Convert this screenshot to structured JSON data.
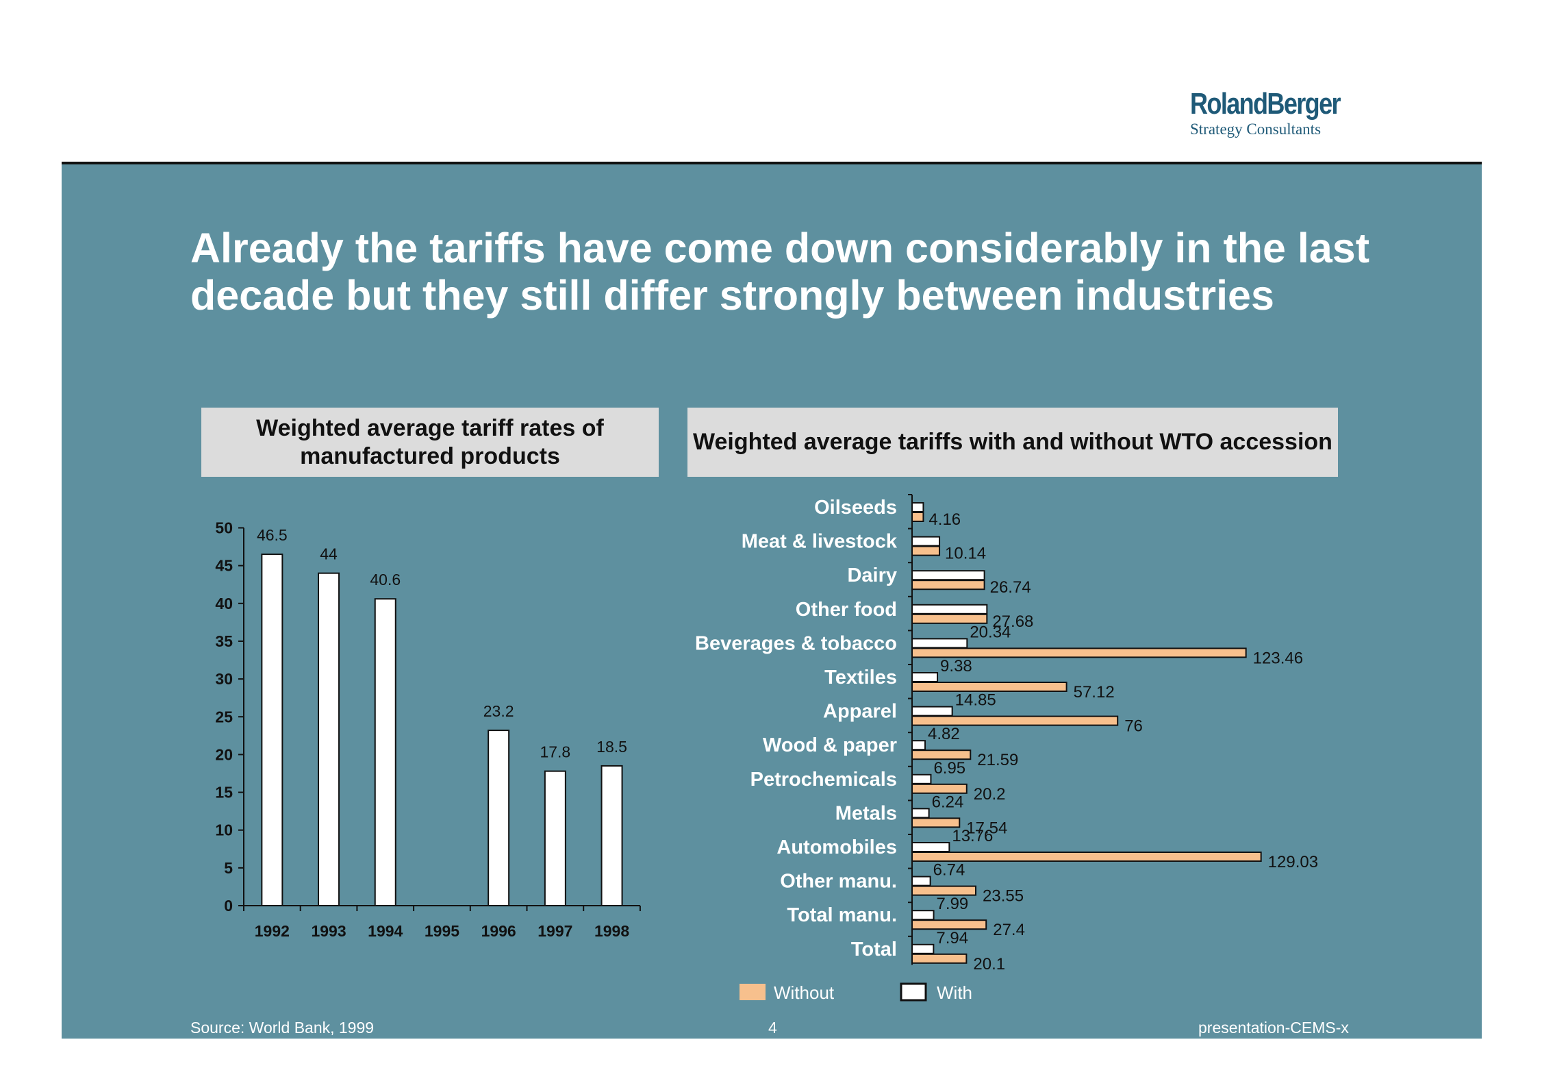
{
  "logo": {
    "brand": "RolandBerger",
    "tagline": "Strategy Consultants"
  },
  "title": "Already the tariffs have come down considerably in the last decade but they still differ strongly between industries",
  "footer": {
    "source": "Source: World Bank, 1999",
    "page": "4",
    "doc_id": "presentation-CEMS-x"
  },
  "colors": {
    "panel": "#5e909f",
    "without": "#f7c08d",
    "with": "#ffffff",
    "header_box": "#dcdcdc"
  },
  "chart_data": [
    {
      "type": "bar",
      "title": "Weighted average tariff rates of manufactured products",
      "categories": [
        "1992",
        "1993",
        "1994",
        "1995",
        "1996",
        "1997",
        "1998"
      ],
      "values": [
        46.5,
        44,
        40.6,
        null,
        23.2,
        17.8,
        18.5
      ],
      "ylim": [
        0,
        50
      ],
      "yticks": [
        0,
        5,
        10,
        15,
        20,
        25,
        30,
        35,
        40,
        45,
        50
      ]
    },
    {
      "type": "bar",
      "orientation": "horizontal",
      "title": "Weighted average tariffs with and without WTO accession",
      "categories": [
        "Oilseeds",
        "Meat & livestock",
        "Dairy",
        "Other food",
        "Beverages & tobacco",
        "Textiles",
        "Apparel",
        "Wood & paper",
        "Petrochemicals",
        "Metals",
        "Automobiles",
        "Other manu.",
        "Total manu.",
        "Total"
      ],
      "series": [
        {
          "name": "With",
          "values": [
            4.16,
            10.14,
            26.74,
            27.68,
            20.34,
            9.38,
            14.85,
            4.82,
            6.95,
            6.24,
            13.76,
            6.74,
            7.99,
            7.94
          ]
        },
        {
          "name": "Without",
          "values": [
            4.16,
            10.14,
            26.74,
            27.68,
            123.46,
            57.12,
            76,
            21.59,
            20.2,
            17.54,
            129.03,
            23.55,
            27.4,
            20.1
          ]
        }
      ],
      "data_labels": [
        "4.16",
        "10.14",
        "26.74",
        "27.68",
        "20.34",
        "123.46",
        "9.38",
        "57.12",
        "14.85",
        "76",
        "4.82",
        "21.59",
        "6.95",
        "20.2",
        "6.24",
        "17.54",
        "13.76",
        "129.03",
        "6.74",
        "23.55",
        "7.99",
        "27.4",
        "7.94",
        "20.1"
      ],
      "legend": [
        "Without",
        "With"
      ],
      "legend_position": "bottom"
    }
  ]
}
